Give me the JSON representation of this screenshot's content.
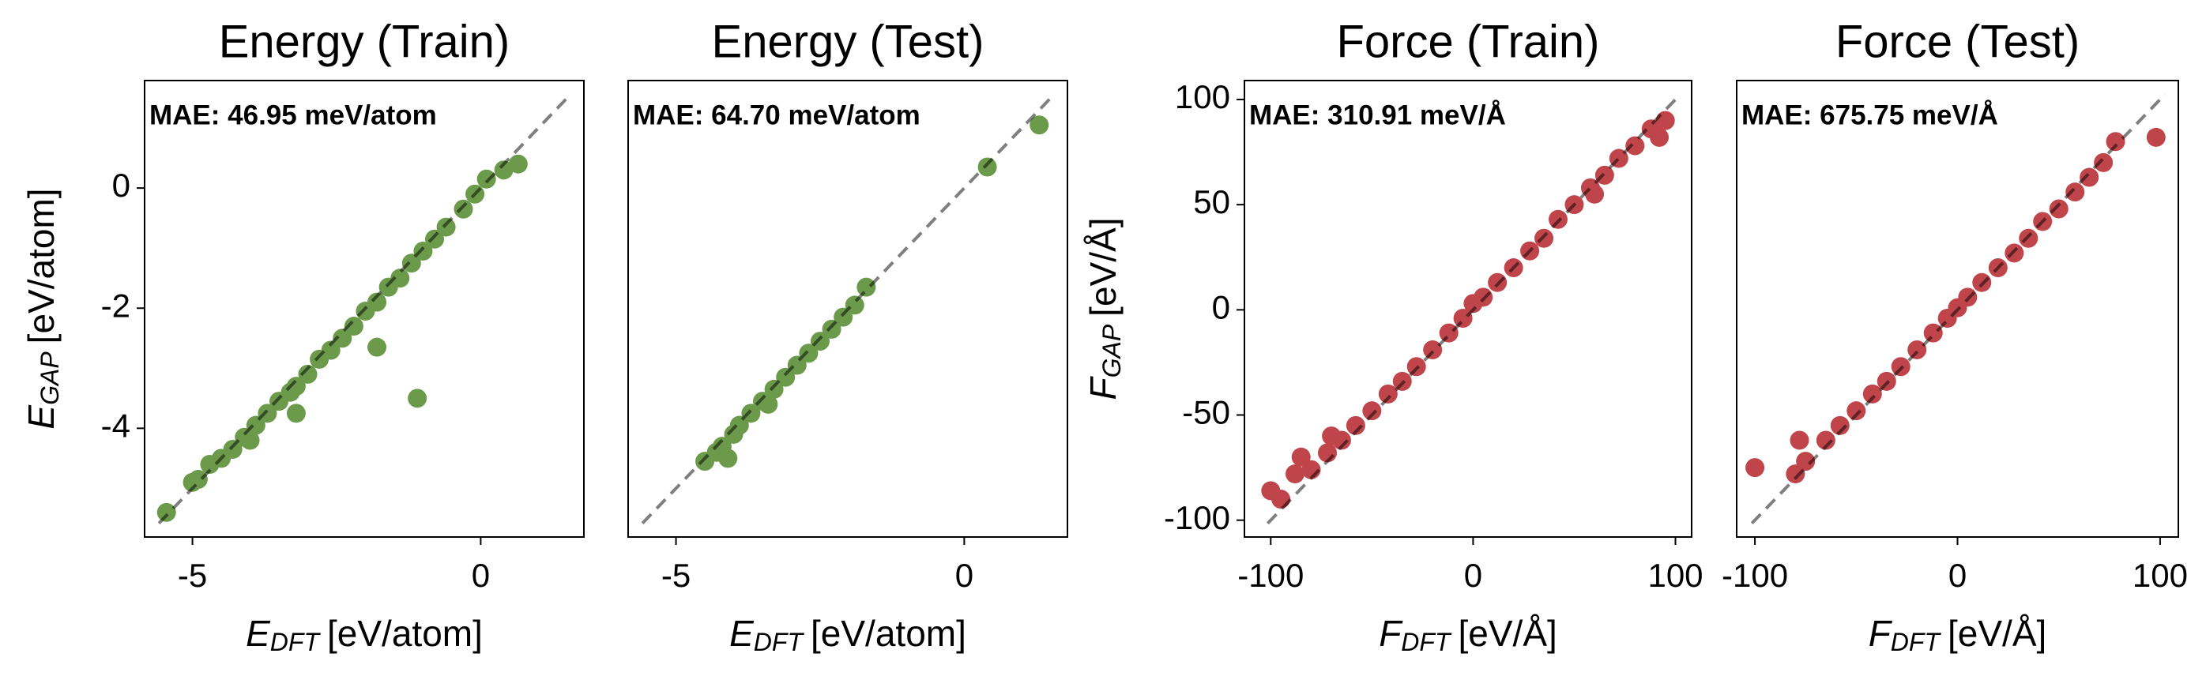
{
  "chart_data": [
    {
      "type": "scatter",
      "title": "Energy (Train)",
      "annotation": "MAE: 46.95 meV/atom",
      "xlabel": {
        "symbol": "E",
        "subscript": "DFT",
        "unit": "[eV/atom]"
      },
      "ylabel": {
        "symbol": "E",
        "subscript": "GAP",
        "unit": "[eV/atom]"
      },
      "xlim": [
        -5.83,
        1.79
      ],
      "ylim": [
        -5.81,
        1.79
      ],
      "xticks": [
        -5,
        0
      ],
      "yticks": [
        -4,
        -2,
        0
      ],
      "series": [
        {
          "color": "#6b9a4a",
          "x": [
            -5.45,
            -5.0,
            -4.9,
            -4.7,
            -4.5,
            -4.3,
            -4.1,
            -3.9,
            -3.7,
            -3.5,
            -3.3,
            -3.2,
            -3.0,
            -2.8,
            -2.6,
            -2.4,
            -2.2,
            -2.0,
            -1.8,
            -1.6,
            -1.4,
            -1.2,
            -1.0,
            -0.8,
            -0.6,
            -0.3,
            -0.1,
            0.1,
            0.4,
            0.65,
            -1.8,
            -1.1,
            -3.2,
            -4.0
          ],
          "y": [
            -5.4,
            -4.9,
            -4.85,
            -4.6,
            -4.5,
            -4.35,
            -4.15,
            -3.95,
            -3.75,
            -3.55,
            -3.4,
            -3.3,
            -3.1,
            -2.85,
            -2.7,
            -2.5,
            -2.3,
            -2.05,
            -1.9,
            -1.65,
            -1.5,
            -1.25,
            -1.05,
            -0.85,
            -0.65,
            -0.35,
            -0.1,
            0.15,
            0.3,
            0.4,
            -2.65,
            -3.5,
            -3.75,
            -4.2
          ]
        }
      ]
    },
    {
      "type": "scatter",
      "title": "Energy (Test)",
      "annotation": "MAE: 64.70 meV/atom",
      "xlabel": {
        "symbol": "E",
        "subscript": "DFT",
        "unit": "[eV/atom]"
      },
      "xlim": [
        -5.83,
        1.79
      ],
      "ylim": [
        -5.81,
        1.79
      ],
      "xticks": [
        -5,
        0
      ],
      "series": [
        {
          "color": "#6b9a4a",
          "x": [
            -4.5,
            -4.3,
            -4.2,
            -4.0,
            -3.9,
            -3.7,
            -3.5,
            -3.3,
            -3.1,
            -2.9,
            -2.7,
            -2.5,
            -2.3,
            -2.1,
            -1.9,
            -1.7,
            -4.1,
            -3.4,
            0.4,
            1.3
          ],
          "y": [
            -4.55,
            -4.4,
            -4.3,
            -4.1,
            -3.95,
            -3.75,
            -3.55,
            -3.35,
            -3.15,
            -2.95,
            -2.75,
            -2.55,
            -2.35,
            -2.15,
            -1.95,
            -1.65,
            -4.5,
            -3.6,
            0.35,
            1.05
          ]
        }
      ]
    },
    {
      "type": "scatter",
      "title": "Force (Train)",
      "annotation": "MAE: 310.91 meV/Å",
      "xlabel": {
        "symbol": "F",
        "subscript": "DFT",
        "unit": "[eV/Å]"
      },
      "ylabel": {
        "symbol": "F",
        "subscript": "GAP",
        "unit": "[eV/Å]"
      },
      "xlim": [
        -113,
        108
      ],
      "ylim": [
        -108,
        109
      ],
      "xticks": [
        -100,
        0,
        100
      ],
      "yticks": [
        -100,
        -50,
        0,
        50,
        100
      ],
      "series": [
        {
          "color": "#c0454a",
          "x": [
            -100,
            -95,
            -88,
            -80,
            -72,
            -65,
            -58,
            -50,
            -42,
            -35,
            -28,
            -20,
            -12,
            -5,
            0,
            5,
            12,
            20,
            28,
            35,
            42,
            50,
            58,
            65,
            72,
            80,
            88,
            95,
            -85,
            -70,
            60,
            92
          ],
          "y": [
            -86,
            -90,
            -78,
            -76,
            -68,
            -62,
            -55,
            -48,
            -40,
            -34,
            -27,
            -19,
            -11,
            -4,
            3,
            6,
            13,
            20,
            28,
            34,
            43,
            50,
            58,
            64,
            72,
            78,
            86,
            90,
            -70,
            -60,
            55,
            82
          ]
        }
      ]
    },
    {
      "type": "scatter",
      "title": "Force (Test)",
      "annotation": "MAE: 675.75 meV/Å",
      "xlabel": {
        "symbol": "F",
        "subscript": "DFT",
        "unit": "[eV/Å]"
      },
      "xlim": [
        -109,
        109
      ],
      "ylim": [
        -108,
        109
      ],
      "xticks": [
        -100,
        0,
        100
      ],
      "series": [
        {
          "color": "#c0454a",
          "x": [
            -100,
            -80,
            -78,
            -75,
            -65,
            -58,
            -50,
            -42,
            -35,
            -28,
            -20,
            -12,
            -5,
            0,
            5,
            12,
            20,
            28,
            35,
            42,
            50,
            58,
            65,
            72,
            78,
            98
          ],
          "y": [
            -75,
            -78,
            -62,
            -72,
            -62,
            -55,
            -48,
            -40,
            -34,
            -27,
            -19,
            -11,
            -4,
            1,
            6,
            13,
            20,
            27,
            34,
            42,
            48,
            56,
            63,
            70,
            80,
            82
          ]
        }
      ]
    }
  ]
}
